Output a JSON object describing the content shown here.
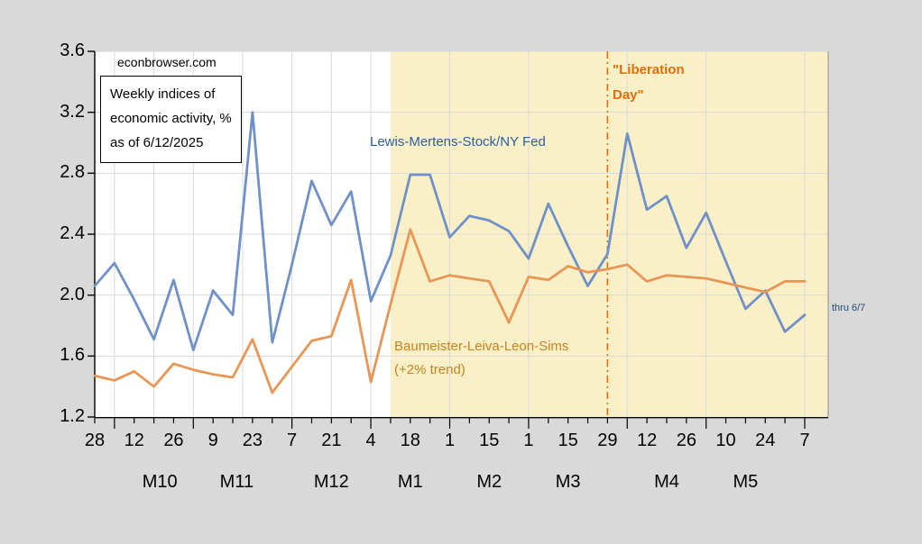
{
  "watermark": "econbrowser.com",
  "note_box": {
    "lines": [
      "Weekly indices of",
      "economic activity, %",
      "as of 6/12/2025"
    ]
  },
  "annotations": {
    "series_blue_label": {
      "text": "Lewis-Mertens-Stock/NY Fed",
      "color": "#2F5D9E"
    },
    "series_orange_label": {
      "lines": [
        "Baumeister-Leiva-Leon-Sims",
        "(+2% trend)"
      ],
      "color": "#C9821F"
    },
    "liberation_day": {
      "lines": [
        "\"Liberation",
        "Day\""
      ],
      "color": "#E36C09"
    },
    "thru_label": {
      "text": "thru 6/7",
      "color": "#234A72"
    }
  },
  "chart_data": {
    "type": "line",
    "n_points": 37,
    "x_tick_labels": [
      "28",
      "12",
      "26",
      "9",
      "23",
      "7",
      "21",
      "4",
      "18",
      "1",
      "15",
      "1",
      "15",
      "29",
      "12",
      "26",
      "10",
      "24",
      "7"
    ],
    "x_tick_label_positions": [
      0,
      2,
      4,
      6,
      8,
      10,
      12,
      14,
      16,
      18,
      20,
      22,
      24,
      26,
      28,
      30,
      32,
      34,
      36
    ],
    "month_labels": [
      {
        "label": "M10",
        "pos": 3.3
      },
      {
        "label": "M11",
        "pos": 7.2
      },
      {
        "label": "M12",
        "pos": 12.0
      },
      {
        "label": "M1",
        "pos": 16.0
      },
      {
        "label": "M2",
        "pos": 20.0
      },
      {
        "label": "M3",
        "pos": 24.0
      },
      {
        "label": "M4",
        "pos": 29.0
      },
      {
        "label": "M5",
        "pos": 33.0
      }
    ],
    "ylim": [
      1.2,
      3.6
    ],
    "y_ticks": [
      1.2,
      1.6,
      2.0,
      2.4,
      2.8,
      3.2,
      3.6
    ],
    "y_tick_labels": [
      "1.2",
      "1.6",
      "2.0",
      "2.4",
      "2.8",
      "3.2",
      "3.6"
    ],
    "series": [
      {
        "name": "Lewis-Mertens-Stock/NY Fed",
        "color": "#7090C8",
        "values": [
          2.06,
          2.21,
          1.97,
          1.71,
          2.1,
          1.64,
          2.03,
          1.87,
          3.2,
          1.69,
          2.2,
          2.75,
          2.46,
          2.68,
          1.96,
          2.26,
          2.79,
          2.79,
          2.38,
          2.52,
          2.49,
          2.42,
          2.24,
          2.6,
          2.32,
          2.06,
          2.27,
          3.06,
          2.56,
          2.65,
          2.31,
          2.54,
          2.22,
          1.91,
          2.03,
          1.76,
          1.87
        ]
      },
      {
        "name": "Baumeister-Leiva-Leon-Sims (+2% trend)",
        "color": "#E89656",
        "values": [
          1.47,
          1.44,
          1.5,
          1.4,
          1.55,
          1.51,
          1.48,
          1.46,
          1.71,
          1.36,
          1.53,
          1.7,
          1.73,
          2.1,
          1.43,
          1.94,
          2.43,
          2.09,
          2.13,
          2.11,
          2.09,
          1.82,
          2.12,
          2.1,
          2.19,
          2.15,
          2.17,
          2.2,
          2.09,
          2.13,
          2.12,
          2.11,
          2.08,
          2.05,
          2.02,
          2.09,
          2.09
        ]
      }
    ],
    "shaded_region": {
      "from_index": 15,
      "color": "#FAF0C8"
    },
    "dashed_vline": {
      "index": 26,
      "color": "#E36C09"
    },
    "grid": true,
    "background_outer": "#D9D9D9",
    "background_plot": "#FFFFFF",
    "gridline_color": "#D9D9D9"
  }
}
